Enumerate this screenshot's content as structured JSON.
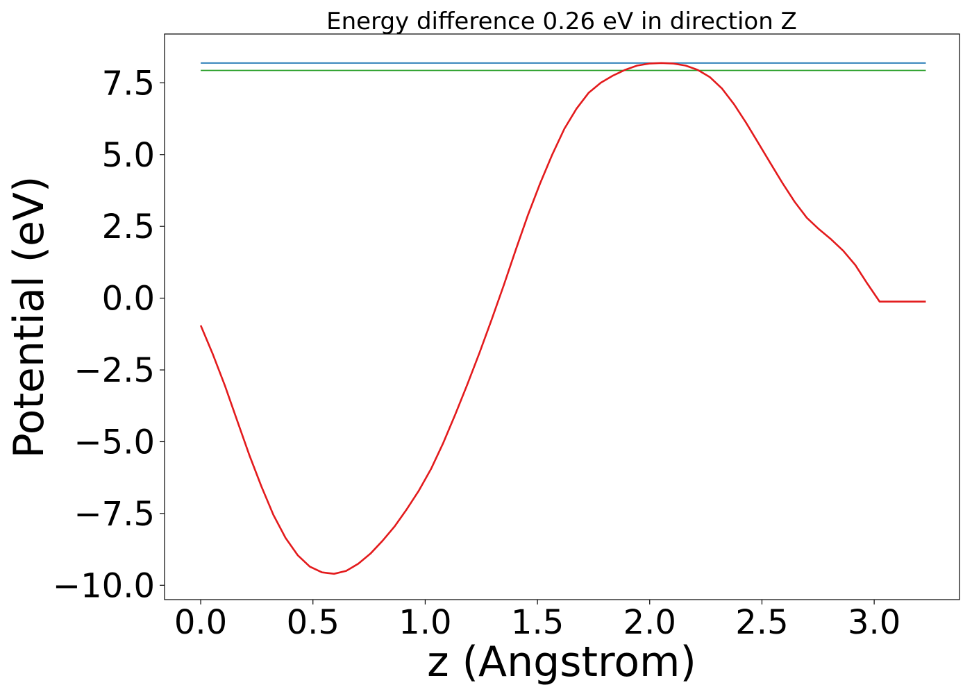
{
  "chart_data": {
    "type": "line",
    "title": "Energy difference 0.26 eV in direction Z",
    "xlabel": "z (Angstrom)",
    "ylabel": "Potential (eV)",
    "xlim": [
      -0.161,
      3.38
    ],
    "ylim": [
      -10.5,
      9.2
    ],
    "x_ticks": [
      0.0,
      0.5,
      1.0,
      1.5,
      2.0,
      2.5,
      3.0
    ],
    "x_tick_labels": [
      "0.0",
      "0.5",
      "1.0",
      "1.5",
      "2.0",
      "2.5",
      "3.0"
    ],
    "y_ticks": [
      7.5,
      5.0,
      2.5,
      0.0,
      -2.5,
      -5.0,
      -7.5,
      -10.0
    ],
    "y_tick_labels": [
      "7.5",
      "5.0",
      "2.5",
      "0.0",
      "−2.5",
      "−5.0",
      "−7.5",
      "−10.0"
    ],
    "grid": false,
    "series": [
      {
        "color": "#1f77b4",
        "x": [
          0.0,
          3.23
        ],
        "y": [
          8.19,
          8.19
        ]
      },
      {
        "color": "#2ca02c",
        "x": [
          0.0,
          3.23
        ],
        "y": [
          7.93,
          7.93
        ]
      },
      {
        "color": "#e31a1c",
        "x": [
          0.0,
          0.054,
          0.108,
          0.162,
          0.216,
          0.27,
          0.324,
          0.378,
          0.432,
          0.486,
          0.54,
          0.594,
          0.648,
          0.702,
          0.756,
          0.81,
          0.864,
          0.918,
          0.972,
          1.026,
          1.08,
          1.134,
          1.188,
          1.242,
          1.296,
          1.35,
          1.404,
          1.458,
          1.512,
          1.566,
          1.62,
          1.674,
          1.728,
          1.782,
          1.836,
          1.89,
          1.944,
          1.998,
          2.052,
          2.106,
          2.16,
          2.214,
          2.268,
          2.322,
          2.376,
          2.43,
          2.484,
          2.538,
          2.592,
          2.646,
          2.7,
          2.754,
          2.808,
          2.862,
          2.916,
          2.97,
          3.024,
          3.078,
          3.132,
          3.186,
          3.23
        ],
        "y": [
          -0.95,
          -1.95,
          -3.05,
          -4.25,
          -5.45,
          -6.55,
          -7.55,
          -8.35,
          -8.95,
          -9.35,
          -9.55,
          -9.6,
          -9.5,
          -9.25,
          -8.9,
          -8.45,
          -7.95,
          -7.35,
          -6.7,
          -5.95,
          -5.05,
          -4.05,
          -3.0,
          -1.9,
          -0.75,
          0.45,
          1.7,
          2.9,
          4.0,
          5.0,
          5.9,
          6.6,
          7.15,
          7.5,
          7.75,
          7.95,
          8.1,
          8.17,
          8.19,
          8.17,
          8.1,
          7.95,
          7.7,
          7.3,
          6.75,
          6.1,
          5.4,
          4.7,
          4.0,
          3.35,
          2.8,
          2.4,
          2.05,
          1.65,
          1.15,
          0.5,
          -0.12,
          -0.12,
          -0.12,
          -0.12,
          -0.12
        ]
      }
    ]
  }
}
